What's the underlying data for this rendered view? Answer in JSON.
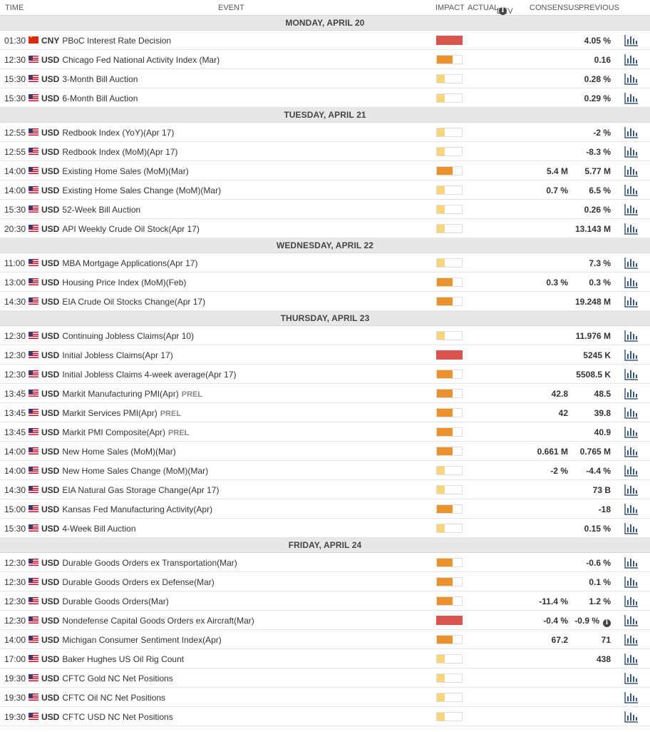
{
  "header": {
    "time": "TIME",
    "event": "EVENT",
    "impact": "IMPACT",
    "actual": "ACTUAL",
    "dev": "DEV",
    "consensus": "CONSENSUS",
    "previous": "PREVIOUS"
  },
  "colors": {
    "high": "#d9534f",
    "medium": "#e8912d",
    "low": "#f7d57a",
    "chart_icon": "#3d5a78"
  },
  "days": [
    {
      "label": "MONDAY, APRIL 20",
      "events": [
        {
          "time": "01:30",
          "flag": "cn-flag-icon",
          "currency": "CNY",
          "name": "PBoC Interest Rate Decision",
          "impact": "high",
          "consensus": "",
          "previous": "4.05 %"
        },
        {
          "time": "12:30",
          "flag": "us-flag-icon",
          "currency": "USD",
          "name": "Chicago Fed National Activity Index (Mar)",
          "impact": "medium",
          "consensus": "",
          "previous": "0.16"
        },
        {
          "time": "15:30",
          "flag": "us-flag-icon",
          "currency": "USD",
          "name": "3-Month Bill Auction",
          "impact": "low",
          "consensus": "",
          "previous": "0.28 %"
        },
        {
          "time": "15:30",
          "flag": "us-flag-icon",
          "currency": "USD",
          "name": "6-Month Bill Auction",
          "impact": "low",
          "consensus": "",
          "previous": "0.29 %"
        }
      ]
    },
    {
      "label": "TUESDAY, APRIL 21",
      "events": [
        {
          "time": "12:55",
          "flag": "us-flag-icon",
          "currency": "USD",
          "name": "Redbook Index (YoY)(Apr 17)",
          "impact": "low",
          "consensus": "",
          "previous": "-2 %"
        },
        {
          "time": "12:55",
          "flag": "us-flag-icon",
          "currency": "USD",
          "name": "Redbook Index (MoM)(Apr 17)",
          "impact": "low",
          "consensus": "",
          "previous": "-8.3 %"
        },
        {
          "time": "14:00",
          "flag": "us-flag-icon",
          "currency": "USD",
          "name": "Existing Home Sales (MoM)(Mar)",
          "impact": "medium",
          "consensus": "5.4 M",
          "previous": "5.77 M"
        },
        {
          "time": "14:00",
          "flag": "us-flag-icon",
          "currency": "USD",
          "name": "Existing Home Sales Change (MoM)(Mar)",
          "impact": "low",
          "consensus": "0.7 %",
          "previous": "6.5 %"
        },
        {
          "time": "15:30",
          "flag": "us-flag-icon",
          "currency": "USD",
          "name": "52-Week Bill Auction",
          "impact": "low",
          "consensus": "",
          "previous": "0.26 %"
        },
        {
          "time": "20:30",
          "flag": "us-flag-icon",
          "currency": "USD",
          "name": "API Weekly Crude Oil Stock(Apr 17)",
          "impact": "low",
          "consensus": "",
          "previous": "13.143 M"
        }
      ]
    },
    {
      "label": "WEDNESDAY, APRIL 22",
      "events": [
        {
          "time": "11:00",
          "flag": "us-flag-icon",
          "currency": "USD",
          "name": "MBA Mortgage Applications(Apr 17)",
          "impact": "low",
          "consensus": "",
          "previous": "7.3 %"
        },
        {
          "time": "13:00",
          "flag": "us-flag-icon",
          "currency": "USD",
          "name": "Housing Price Index (MoM)(Feb)",
          "impact": "medium",
          "consensus": "0.3 %",
          "previous": "0.3 %"
        },
        {
          "time": "14:30",
          "flag": "us-flag-icon",
          "currency": "USD",
          "name": "EIA Crude Oil Stocks Change(Apr 17)",
          "impact": "medium",
          "consensus": "",
          "previous": "19.248 M"
        }
      ]
    },
    {
      "label": "THURSDAY, APRIL 23",
      "events": [
        {
          "time": "12:30",
          "flag": "us-flag-icon",
          "currency": "USD",
          "name": "Continuing Jobless Claims(Apr 10)",
          "impact": "low",
          "consensus": "",
          "previous": "11.976 M"
        },
        {
          "time": "12:30",
          "flag": "us-flag-icon",
          "currency": "USD",
          "name": "Initial Jobless Claims(Apr 17)",
          "impact": "high",
          "consensus": "",
          "previous": "5245 K"
        },
        {
          "time": "12:30",
          "flag": "us-flag-icon",
          "currency": "USD",
          "name": "Initial Jobless Claims 4-week average(Apr 17)",
          "impact": "medium",
          "consensus": "",
          "previous": "5508.5 K"
        },
        {
          "time": "13:45",
          "flag": "us-flag-icon",
          "currency": "USD",
          "name": "Markit Manufacturing PMI(Apr)",
          "prel": "PREL",
          "impact": "medium",
          "consensus": "42.8",
          "previous": "48.5"
        },
        {
          "time": "13:45",
          "flag": "us-flag-icon",
          "currency": "USD",
          "name": "Markit Services PMI(Apr)",
          "prel": "PREL",
          "impact": "medium",
          "consensus": "42",
          "previous": "39.8"
        },
        {
          "time": "13:45",
          "flag": "us-flag-icon",
          "currency": "USD",
          "name": "Markit PMI Composite(Apr)",
          "prel": "PREL",
          "impact": "medium",
          "consensus": "",
          "previous": "40.9"
        },
        {
          "time": "14:00",
          "flag": "us-flag-icon",
          "currency": "USD",
          "name": "New Home Sales (MoM)(Mar)",
          "impact": "medium",
          "consensus": "0.661 M",
          "previous": "0.765 M"
        },
        {
          "time": "14:00",
          "flag": "us-flag-icon",
          "currency": "USD",
          "name": "New Home Sales Change (MoM)(Mar)",
          "impact": "low",
          "consensus": "-2 %",
          "previous": "-4.4 %"
        },
        {
          "time": "14:30",
          "flag": "us-flag-icon",
          "currency": "USD",
          "name": "EIA Natural Gas Storage Change(Apr 17)",
          "impact": "low",
          "consensus": "",
          "previous": "73 B"
        },
        {
          "time": "15:00",
          "flag": "us-flag-icon",
          "currency": "USD",
          "name": "Kansas Fed Manufacturing Activity(Apr)",
          "impact": "medium",
          "consensus": "",
          "previous": "-18"
        },
        {
          "time": "15:30",
          "flag": "us-flag-icon",
          "currency": "USD",
          "name": "4-Week Bill Auction",
          "impact": "low",
          "consensus": "",
          "previous": "0.15 %"
        }
      ]
    },
    {
      "label": "FRIDAY, APRIL 24",
      "events": [
        {
          "time": "12:30",
          "flag": "us-flag-icon",
          "currency": "USD",
          "name": "Durable Goods Orders ex Transportation(Mar)",
          "impact": "medium",
          "consensus": "",
          "previous": "-0.6 %"
        },
        {
          "time": "12:30",
          "flag": "us-flag-icon",
          "currency": "USD",
          "name": "Durable Goods Orders ex Defense(Mar)",
          "impact": "medium",
          "consensus": "",
          "previous": "0.1 %"
        },
        {
          "time": "12:30",
          "flag": "us-flag-icon",
          "currency": "USD",
          "name": "Durable Goods Orders(Mar)",
          "impact": "medium",
          "consensus": "-11.4 %",
          "previous": "1.2 %"
        },
        {
          "time": "12:30",
          "flag": "us-flag-icon",
          "currency": "USD",
          "name": "Nondefense Capital Goods Orders ex Aircraft(Mar)",
          "impact": "high",
          "consensus": "-0.4 %",
          "previous": "-0.9 %",
          "previous_info": true
        },
        {
          "time": "14:00",
          "flag": "us-flag-icon",
          "currency": "USD",
          "name": "Michigan Consumer Sentiment Index(Apr)",
          "impact": "medium",
          "consensus": "67.2",
          "previous": "71"
        },
        {
          "time": "17:00",
          "flag": "us-flag-icon",
          "currency": "USD",
          "name": "Baker Hughes US Oil Rig Count",
          "impact": "low",
          "consensus": "",
          "previous": "438"
        },
        {
          "time": "19:30",
          "flag": "us-flag-icon",
          "currency": "USD",
          "name": "CFTC Gold NC Net Positions",
          "impact": "low",
          "consensus": "",
          "previous": ""
        },
        {
          "time": "19:30",
          "flag": "us-flag-icon",
          "currency": "USD",
          "name": "CFTC Oil NC Net Positions",
          "impact": "low",
          "consensus": "",
          "previous": ""
        },
        {
          "time": "19:30",
          "flag": "us-flag-icon",
          "currency": "USD",
          "name": "CFTC USD NC Net Positions",
          "impact": "low",
          "consensus": "",
          "previous": ""
        }
      ]
    }
  ]
}
